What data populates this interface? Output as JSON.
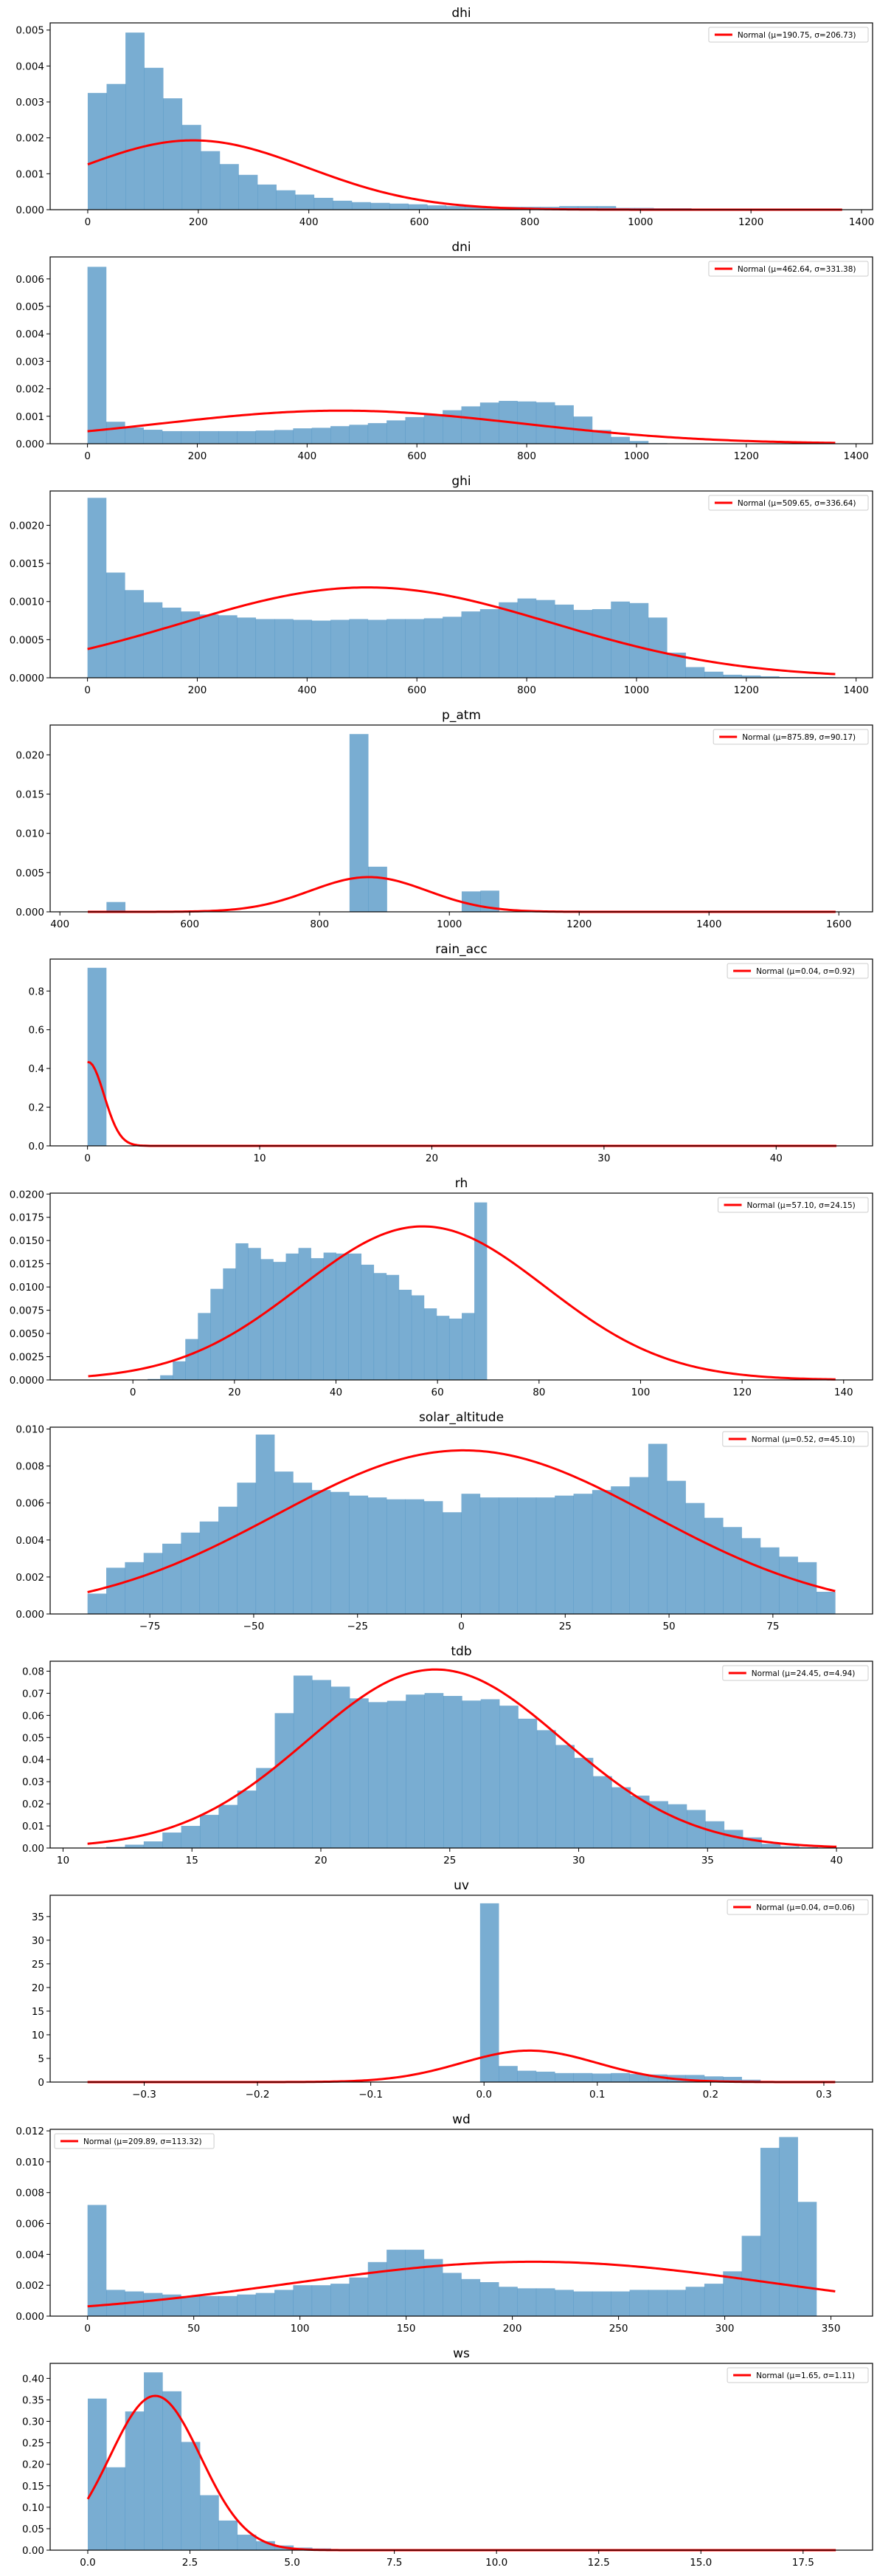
{
  "figure": {
    "kind": "histograms-with-normal-fit"
  },
  "chart_data": [
    {
      "type": "bar",
      "title": "dhi",
      "xlabel": "",
      "ylabel": "",
      "legend": "Normal (μ=190.75, σ=206.73)",
      "legend_position": "top-right",
      "fit": {
        "mu": 190.75,
        "sigma": 206.73,
        "x_range": [
          0,
          1365
        ]
      },
      "bin_range": [
        0,
        1365
      ],
      "xlim": [
        -68,
        1420
      ],
      "ylim": [
        0,
        0.0052
      ],
      "xticks": [
        0,
        200,
        400,
        600,
        800,
        1000,
        1200,
        1400
      ],
      "yticks": [
        0,
        0.001,
        0.002,
        0.003,
        0.004,
        0.005
      ],
      "ytick_labels": [
        "0.000",
        "0.001",
        "0.002",
        "0.003",
        "0.004",
        "0.005"
      ],
      "values": [
        0.00325,
        0.0035,
        0.00493,
        0.00395,
        0.0031,
        0.00236,
        0.00163,
        0.00127,
        0.00097,
        0.0007,
        0.00054,
        0.00042,
        0.00033,
        0.00025,
        0.00021,
        0.00019,
        0.00017,
        0.00015,
        0.00012,
        0.0001,
        9e-05,
        8e-05,
        8e-05,
        8e-05,
        8e-05,
        0.0001,
        0.0001,
        0.0001,
        5e-05,
        5e-05,
        4e-05,
        4e-05,
        2e-05,
        1e-05,
        0.0,
        0.0,
        0.0,
        0.0,
        0.0,
        0.0
      ]
    },
    {
      "type": "bar",
      "title": "dni",
      "xlabel": "",
      "ylabel": "",
      "legend": "Normal (μ=462.64, σ=331.38)",
      "legend_position": "top-right",
      "fit": {
        "mu": 462.64,
        "sigma": 331.38,
        "x_range": [
          0,
          1362
        ]
      },
      "bin_range": [
        0,
        1362
      ],
      "xlim": [
        -68,
        1430
      ],
      "ylim": [
        0,
        0.0068
      ],
      "xticks": [
        0,
        200,
        400,
        600,
        800,
        1000,
        1200,
        1400
      ],
      "yticks": [
        0,
        0.001,
        0.002,
        0.003,
        0.004,
        0.005,
        0.006
      ],
      "ytick_labels": [
        "0.000",
        "0.001",
        "0.002",
        "0.003",
        "0.004",
        "0.005",
        "0.006"
      ],
      "values": [
        0.00644,
        0.0008,
        0.00059,
        0.00051,
        0.00046,
        0.00046,
        0.00046,
        0.00046,
        0.00046,
        0.00048,
        0.0005,
        0.00056,
        0.00058,
        0.00064,
        0.00069,
        0.00075,
        0.00085,
        0.00097,
        0.00108,
        0.00122,
        0.00136,
        0.0015,
        0.00156,
        0.00154,
        0.00151,
        0.0014,
        0.00099,
        0.0005,
        0.00025,
        0.0001,
        2e-05,
        0.0,
        0.0,
        0.0,
        0.0,
        0.0,
        0.0,
        0.0,
        0.0,
        0.0
      ]
    },
    {
      "type": "bar",
      "title": "ghi",
      "xlabel": "",
      "ylabel": "",
      "legend": "Normal (μ=509.65, σ=336.64)",
      "legend_position": "top-right",
      "fit": {
        "mu": 509.65,
        "sigma": 336.64,
        "x_range": [
          0,
          1362
        ]
      },
      "bin_range": [
        0,
        1362
      ],
      "xlim": [
        -68,
        1430
      ],
      "ylim": [
        0,
        0.00245
      ],
      "xticks": [
        0,
        200,
        400,
        600,
        800,
        1000,
        1200,
        1400
      ],
      "yticks": [
        0,
        0.0005,
        0.001,
        0.0015,
        0.002
      ],
      "ytick_labels": [
        "0.0000",
        "0.0005",
        "0.0010",
        "0.0015",
        "0.0020"
      ],
      "values": [
        0.00236,
        0.00138,
        0.00115,
        0.00099,
        0.00092,
        0.00087,
        0.00083,
        0.00082,
        0.00079,
        0.00077,
        0.00077,
        0.00076,
        0.00075,
        0.00076,
        0.00077,
        0.00076,
        0.00077,
        0.00077,
        0.00078,
        0.0008,
        0.00087,
        0.0009,
        0.00099,
        0.00104,
        0.00102,
        0.00096,
        0.00089,
        0.0009,
        0.001,
        0.00098,
        0.00079,
        0.00033,
        0.00014,
        8e-05,
        4e-05,
        3e-05,
        2e-05,
        1e-05,
        1e-05,
        1e-05
      ]
    },
    {
      "type": "bar",
      "title": "p_atm",
      "xlabel": "",
      "ylabel": "",
      "legend": "Normal (μ=875.89, σ=90.17)",
      "legend_position": "top-right",
      "fit": {
        "mu": 875.89,
        "sigma": 90.17,
        "x_range": [
          443,
          1595
        ]
      },
      "bin_range": [
        443,
        1595
      ],
      "xlim": [
        385,
        1652
      ],
      "ylim": [
        0,
        0.0238
      ],
      "xticks": [
        400,
        600,
        800,
        1000,
        1200,
        1400,
        1600
      ],
      "yticks": [
        0,
        0.005,
        0.01,
        0.015,
        0.02
      ],
      "ytick_labels": [
        "0.000",
        "0.005",
        "0.010",
        "0.015",
        "0.020"
      ],
      "values": [
        0.0,
        0.00125,
        0.0,
        0.0,
        0.0,
        0.0,
        0.0,
        0.0,
        0.0,
        0.0,
        0.0,
        0.0,
        0.0,
        0.0,
        0.02265,
        0.00575,
        0.0,
        0.0,
        0.0,
        0.0,
        0.0026,
        0.0027,
        0.0,
        0.0,
        0.0,
        0.0,
        0.0,
        0.0,
        0.0,
        0.0,
        0.0,
        0.0,
        0.0,
        0.0,
        0.0,
        0.0,
        0.0,
        0.0,
        0.0,
        0.0
      ]
    },
    {
      "type": "bar",
      "title": "rain_acc",
      "xlabel": "",
      "ylabel": "",
      "legend": "Normal (μ=0.04, σ=0.92)",
      "legend_position": "top-right",
      "fit": {
        "mu": 0.04,
        "sigma": 0.92,
        "x_range": [
          0,
          43.5
        ]
      },
      "bin_range": [
        0,
        43.5
      ],
      "xlim": [
        -2.17,
        45.6
      ],
      "ylim": [
        0,
        0.965
      ],
      "xticks": [
        0,
        10,
        20,
        30,
        40
      ],
      "yticks": [
        0,
        0.2,
        0.4,
        0.6,
        0.8
      ],
      "ytick_labels": [
        "0.0",
        "0.2",
        "0.4",
        "0.6",
        "0.8"
      ],
      "values": [
        0.92,
        0.0,
        0.0,
        0.0,
        0.0,
        0.0,
        0.0,
        0.0,
        0.0,
        0.0,
        0.0,
        0.0,
        0.0,
        0.0,
        0.0,
        0.0,
        0.0,
        0.0,
        0.0,
        0.0,
        0.0,
        0.0,
        0.0,
        0.0,
        0.0,
        0.0,
        0.0,
        0.0,
        0.0,
        0.0,
        0.0,
        0.0,
        0.0,
        0.0,
        0.0,
        0.0,
        0.0,
        0.0,
        0.0,
        0.0
      ]
    },
    {
      "type": "bar",
      "title": "rh",
      "xlabel": "",
      "ylabel": "",
      "legend": "Normal (μ=57.10, σ=24.15)",
      "legend_position": "top-right",
      "fit": {
        "mu": 57.1,
        "sigma": 24.15,
        "x_range": [
          -8.8,
          138.4
        ]
      },
      "bin_range": [
        2.9,
        101.9
      ],
      "xlim": [
        -16.3,
        145.7
      ],
      "ylim": [
        0,
        0.0201
      ],
      "xticks": [
        0,
        20,
        40,
        60,
        80,
        100,
        120,
        140
      ],
      "yticks": [
        0,
        0.0025,
        0.005,
        0.0075,
        0.01,
        0.0125,
        0.015,
        0.0175,
        0.02
      ],
      "ytick_labels": [
        "0.0000",
        "0.0025",
        "0.0050",
        "0.0075",
        "0.0100",
        "0.0125",
        "0.0150",
        "0.0175",
        "0.0200"
      ],
      "values": [
        0.0001,
        0.0005,
        0.002,
        0.0044,
        0.0072,
        0.0098,
        0.012,
        0.0147,
        0.0142,
        0.013,
        0.0127,
        0.0136,
        0.0142,
        0.0131,
        0.0137,
        0.0136,
        0.0136,
        0.0124,
        0.0115,
        0.0113,
        0.0097,
        0.0091,
        0.0077,
        0.0069,
        0.0066,
        0.0072,
        0.0191,
        0.0,
        0.0,
        0.0,
        0.0,
        0.0,
        0.0,
        0.0,
        0.0,
        0.0,
        0.0,
        0.0,
        0.0,
        0.0
      ]
    },
    {
      "type": "bar",
      "title": "solar_altitude",
      "xlabel": "",
      "ylabel": "",
      "legend": "Normal (μ=0.52, σ=45.10)",
      "legend_position": "top-right",
      "fit": {
        "mu": 0.52,
        "sigma": 45.1,
        "x_range": [
          -90,
          90
        ]
      },
      "bin_range": [
        -90,
        90
      ],
      "xlim": [
        -99,
        99
      ],
      "ylim": [
        0,
        0.0101
      ],
      "xticks": [
        -75,
        -50,
        -25,
        0,
        25,
        50,
        75
      ],
      "xtick_labels": [
        "−75",
        "−50",
        "−25",
        "0",
        "25",
        "50",
        "75"
      ],
      "yticks": [
        0,
        0.002,
        0.004,
        0.006,
        0.008,
        0.01
      ],
      "ytick_labels": [
        "0.000",
        "0.002",
        "0.004",
        "0.006",
        "0.008",
        "0.010"
      ],
      "values": [
        0.0011,
        0.0025,
        0.0028,
        0.0033,
        0.0038,
        0.0044,
        0.005,
        0.0058,
        0.0071,
        0.0097,
        0.0077,
        0.0071,
        0.0067,
        0.0066,
        0.0064,
        0.0063,
        0.0062,
        0.0062,
        0.0061,
        0.0055,
        0.0065,
        0.0063,
        0.0063,
        0.0063,
        0.0063,
        0.0064,
        0.0065,
        0.0067,
        0.0069,
        0.0074,
        0.0092,
        0.0072,
        0.006,
        0.0052,
        0.0047,
        0.0041,
        0.0036,
        0.0031,
        0.0028,
        0.0012
      ]
    },
    {
      "type": "bar",
      "title": "tdb",
      "xlabel": "",
      "ylabel": "",
      "legend": "Normal (μ=24.45, σ=4.94)",
      "legend_position": "top-right",
      "fit": {
        "mu": 24.45,
        "sigma": 4.94,
        "x_range": [
          10.95,
          40
        ]
      },
      "bin_range": [
        10.95,
        40
      ],
      "xlim": [
        9.5,
        41.4
      ],
      "ylim": [
        0,
        0.0845
      ],
      "xticks": [
        10,
        15,
        20,
        25,
        30,
        35,
        40
      ],
      "yticks": [
        0,
        0.01,
        0.02,
        0.03,
        0.04,
        0.05,
        0.06,
        0.07,
        0.08
      ],
      "ytick_labels": [
        "0.00",
        "0.01",
        "0.02",
        "0.03",
        "0.04",
        "0.05",
        "0.06",
        "0.07",
        "0.08"
      ],
      "values": [
        0.0,
        0.0005,
        0.0015,
        0.003,
        0.007,
        0.01,
        0.015,
        0.0195,
        0.026,
        0.0362,
        0.061,
        0.078,
        0.076,
        0.073,
        0.0677,
        0.066,
        0.0666,
        0.0694,
        0.0701,
        0.0688,
        0.0667,
        0.0673,
        0.0644,
        0.0585,
        0.0533,
        0.0466,
        0.0408,
        0.0325,
        0.0275,
        0.0237,
        0.0212,
        0.0198,
        0.0172,
        0.0121,
        0.0082,
        0.0048,
        0.0019,
        0.0008,
        0.0004,
        0.0001
      ]
    },
    {
      "type": "bar",
      "title": "uv",
      "xlabel": "",
      "ylabel": "",
      "legend": "Normal (μ=0.04, σ=0.06)",
      "legend_position": "top-right",
      "fit": {
        "mu": 0.04,
        "sigma": 0.06,
        "x_range": [
          -0.35,
          0.31
        ]
      },
      "bin_range": [
        -0.35,
        0.31
      ],
      "xlim": [
        -0.383,
        0.343
      ],
      "ylim": [
        0,
        39.5
      ],
      "xticks": [
        -0.3,
        -0.2,
        -0.1,
        0.0,
        0.1,
        0.2,
        0.3
      ],
      "xtick_labels": [
        "−0.3",
        "−0.2",
        "−0.1",
        "0.0",
        "0.1",
        "0.2",
        "0.3"
      ],
      "yticks": [
        0,
        5,
        10,
        15,
        20,
        25,
        30,
        35
      ],
      "ytick_labels": [
        "0",
        "5",
        "10",
        "15",
        "20",
        "25",
        "30",
        "35"
      ],
      "values": [
        0.0,
        0.0,
        0.0,
        0.0,
        0.0,
        0.0,
        0.0,
        0.0,
        0.0,
        0.0,
        0.0,
        0.0,
        0.0,
        0.0,
        0.0,
        0.0,
        0.0,
        0.0,
        0.0,
        0.0,
        0.0,
        37.8,
        3.4,
        2.4,
        2.2,
        1.9,
        1.9,
        1.8,
        1.9,
        1.7,
        1.6,
        1.5,
        1.5,
        1.2,
        1.1,
        0.5,
        0.1,
        0.0,
        0.0,
        0.0
      ]
    },
    {
      "type": "bar",
      "title": "wd",
      "xlabel": "",
      "ylabel": "",
      "legend": "Normal (μ=209.89, σ=113.32)",
      "legend_position": "top-left",
      "fit": {
        "mu": 209.89,
        "sigma": 113.32,
        "x_range": [
          0,
          352
        ]
      },
      "bin_range": [
        0,
        352
      ],
      "xlim": [
        -17.6,
        369.6
      ],
      "ylim": [
        0,
        0.0121
      ],
      "xticks": [
        0,
        50,
        100,
        150,
        200,
        250,
        300,
        350
      ],
      "yticks": [
        0,
        0.002,
        0.004,
        0.006,
        0.008,
        0.01,
        0.012
      ],
      "ytick_labels": [
        "0.000",
        "0.002",
        "0.004",
        "0.006",
        "0.008",
        "0.010",
        "0.012"
      ],
      "values": [
        0.0072,
        0.0017,
        0.0016,
        0.0015,
        0.0014,
        0.0013,
        0.0013,
        0.0013,
        0.0014,
        0.0015,
        0.0017,
        0.002,
        0.002,
        0.0021,
        0.0025,
        0.0035,
        0.0043,
        0.0043,
        0.0037,
        0.0028,
        0.0024,
        0.0022,
        0.0019,
        0.0018,
        0.0018,
        0.0017,
        0.0016,
        0.0016,
        0.0016,
        0.0017,
        0.0017,
        0.0017,
        0.0019,
        0.0021,
        0.0029,
        0.0052,
        0.0109,
        0.0116,
        0.0074,
        0.0
      ]
    },
    {
      "type": "bar",
      "title": "ws",
      "xlabel": "",
      "ylabel": "",
      "legend": "Normal (μ=1.65, σ=1.11)",
      "legend_position": "top-right",
      "fit": {
        "mu": 1.65,
        "sigma": 1.11,
        "x_range": [
          0,
          18.3
        ]
      },
      "bin_range": [
        0,
        18.3
      ],
      "xlim": [
        -0.92,
        19.2
      ],
      "ylim": [
        0,
        0.435
      ],
      "xticks": [
        0,
        2.5,
        5,
        7.5,
        10,
        12.5,
        15,
        17.5
      ],
      "xtick_labels": [
        "0.0",
        "2.5",
        "5.0",
        "7.5",
        "10.0",
        "12.5",
        "15.0",
        "17.5"
      ],
      "yticks": [
        0,
        0.05,
        0.1,
        0.15,
        0.2,
        0.25,
        0.3,
        0.35,
        0.4
      ],
      "ytick_labels": [
        "0.00",
        "0.05",
        "0.10",
        "0.15",
        "0.20",
        "0.25",
        "0.30",
        "0.35",
        "0.40"
      ],
      "values": [
        0.353,
        0.193,
        0.323,
        0.414,
        0.37,
        0.252,
        0.128,
        0.069,
        0.036,
        0.021,
        0.011,
        0.006,
        0.004,
        0.002,
        0.0,
        0.0,
        0.0,
        0.0,
        0.0,
        0.0,
        0.0,
        0.0,
        0.0,
        0.0,
        0.0,
        0.0,
        0.0,
        0.0,
        0.0,
        0.0,
        0.0,
        0.0,
        0.0,
        0.0,
        0.0,
        0.0,
        0.0,
        0.0,
        0.0,
        0.0
      ]
    }
  ]
}
